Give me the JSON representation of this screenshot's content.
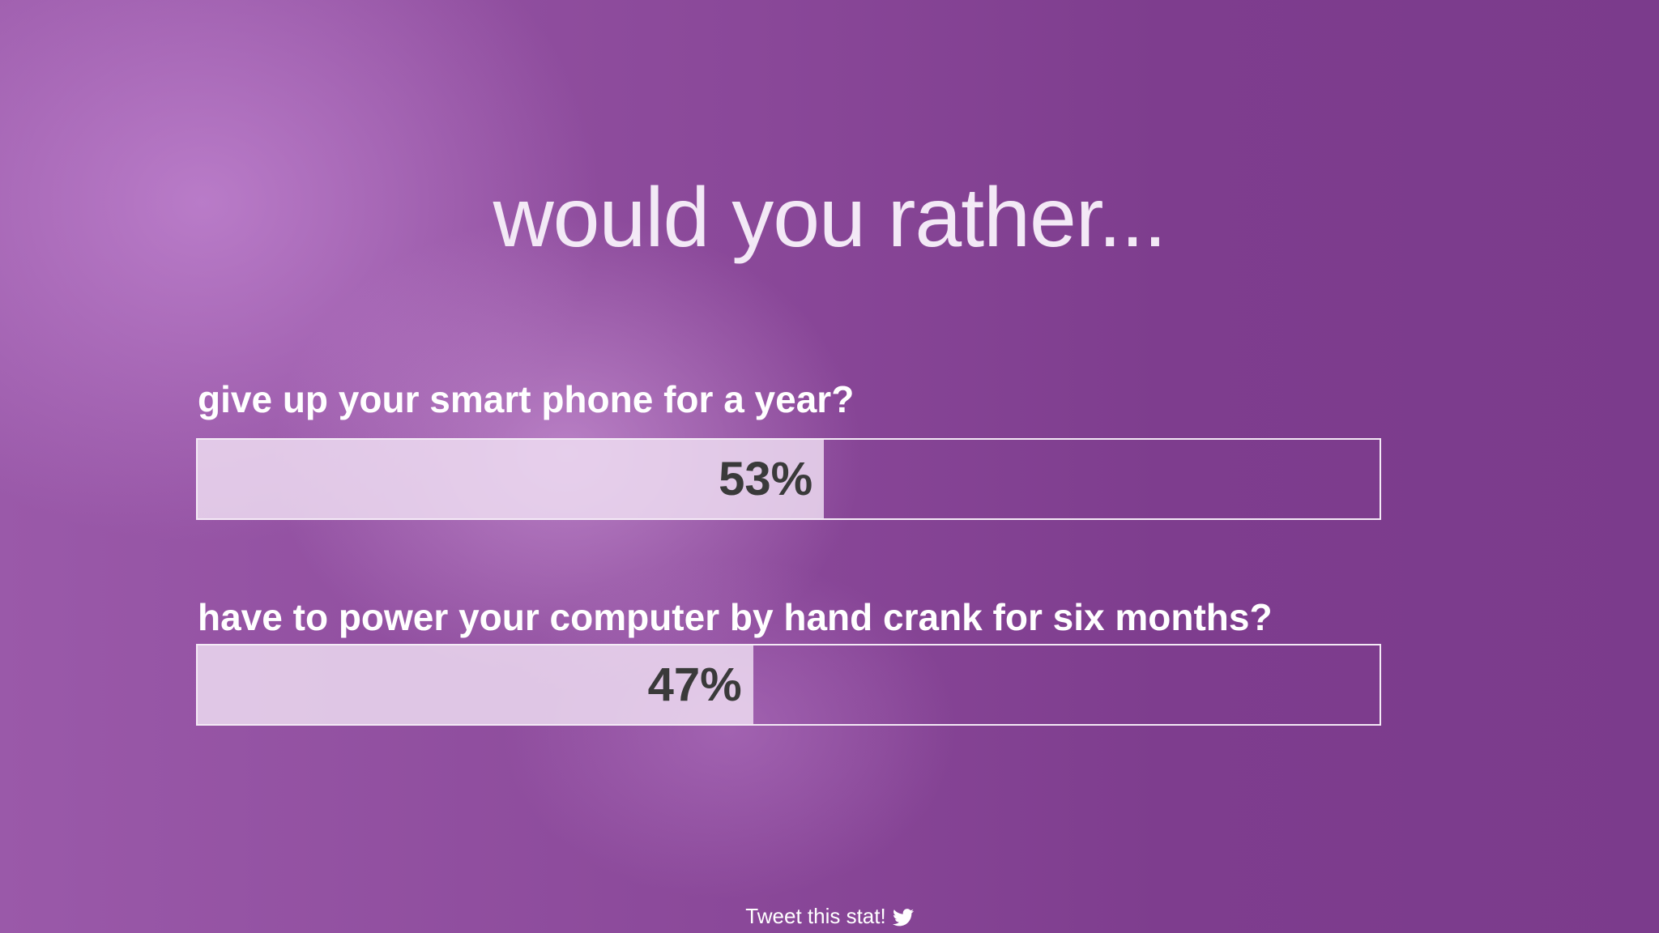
{
  "title": "would you rather...",
  "questions": [
    {
      "text": "give up your smart phone for a year?",
      "percent": 53,
      "percent_label": "53%"
    },
    {
      "text": "have to power your computer by hand crank for six months?",
      "percent": 47,
      "percent_label": "47%"
    }
  ],
  "footer": {
    "tweet": "Tweet this stat!"
  }
}
